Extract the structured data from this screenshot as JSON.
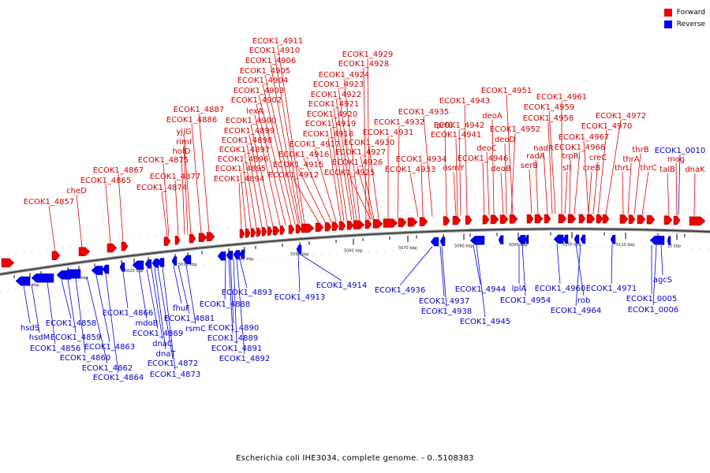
{
  "legend": {
    "forward": {
      "label": "Forward",
      "color": "#ee0000"
    },
    "reverse": {
      "label": "Reverse",
      "color": "#0000ee"
    }
  },
  "caption": "Escherichia coli IHE3034, complete genome. - 0..5108383",
  "ticks": [
    "5000 kbp",
    "5010 kbp",
    "5020 kbp",
    "5030 kbp",
    "5040 kbp",
    "5050 kbp",
    "5060 kbp",
    "5070 kbp",
    "5080 kbp",
    "5090 kbp",
    "5100 kbp",
    "5110 kbp",
    "10 kbp"
  ],
  "forward_labels": [
    "ECOK1_4857",
    "cheD",
    "ECOK1_4865",
    "ECOK1_4867",
    "ECOK1_4874",
    "ECOK1_4875",
    "ECOK1_4877",
    "holD",
    "rimI",
    "yjjG",
    "ECOK1_4886",
    "ECOK1_4887",
    "ECOK1_4894",
    "ECOK1_4895",
    "ECOK1_4896",
    "ECOK1_4897",
    "ECOK1_4898",
    "ECOK1_4899",
    "ECOK1_4900",
    "lexA",
    "ECOK1_4902",
    "ECOK1_4903",
    "ECOK1_4904",
    "ECOK1_4905",
    "ECOK1_4906",
    "ECOK1_4910",
    "ECOK1_4911",
    "ECOK1_4912",
    "ECOK1_4915",
    "ECOK1_4916",
    "ECOK1_4917",
    "ECOK1_4918",
    "ECOK1_4919",
    "ECOK1_4920",
    "ECOK1_4921",
    "ECOK1_4922",
    "ECOK1_4923",
    "ECOK1_4924",
    "ECOK1_4928",
    "ECOK1_4929",
    "ECOK1_4925",
    "ECOK1_4926",
    "ECOK1_4927",
    "ECOK1_4930",
    "ECOK1_4931",
    "ECOK1_4932",
    "ECOK1_4933",
    "ECOK1_4934",
    "ECOK1_4935",
    "prfC",
    "osmY",
    "ECOK1_4941",
    "ECOK1_4942",
    "ECOK1_4943",
    "ECOK1_4946",
    "deoC",
    "deoA",
    "deoB",
    "deoD",
    "ECOK1_4952",
    "ECOK1_4951",
    "serB",
    "radA",
    "nadR",
    "ECOK1_4958",
    "ECOK1_4959",
    "ECOK1_4961",
    "slt",
    "trpR",
    "ECOK1_4966",
    "creB",
    "creC",
    "ECOK1_4967",
    "ECOK1_4970",
    "ECOK1_4972",
    "thrL",
    "thrA",
    "thrB",
    "thrC",
    "talB",
    "mog",
    "dnaK"
  ],
  "reverse_labels": [
    "hsdS",
    "hsdM",
    "ECOK1_4856",
    "ECOK1_4858",
    "ECOK1_4859",
    "ECOK1_4860",
    "ECOK1_4862",
    "ECOK1_4863",
    "ECOK1_4864",
    "ECOK1_4866",
    "mdoB",
    "ECOK1_4869",
    "dnaC",
    "dnaT",
    "ECOK1_4872",
    "ECOK1_4873",
    "fhuF",
    "ECOK1_4881",
    "rsmC",
    "ECOK1_4888",
    "ECOK1_4889",
    "ECOK1_4890",
    "ECOK1_4891",
    "ECOK1_4892",
    "ECOK1_4893",
    "ECOK1_4913",
    "ECOK1_4914",
    "ECOK1_4936",
    "ECOK1_4937",
    "ECOK1_4938",
    "ECOK1_4944",
    "ECOK1_4945",
    "lplA",
    "ECOK1_4954",
    "ECOK1_4960",
    "rob",
    "ECOK1_4964",
    "ECOK1_4971",
    "agcS",
    "ECOK1_0005",
    "ECOK1_0006",
    "ECOK1_0010"
  ]
}
